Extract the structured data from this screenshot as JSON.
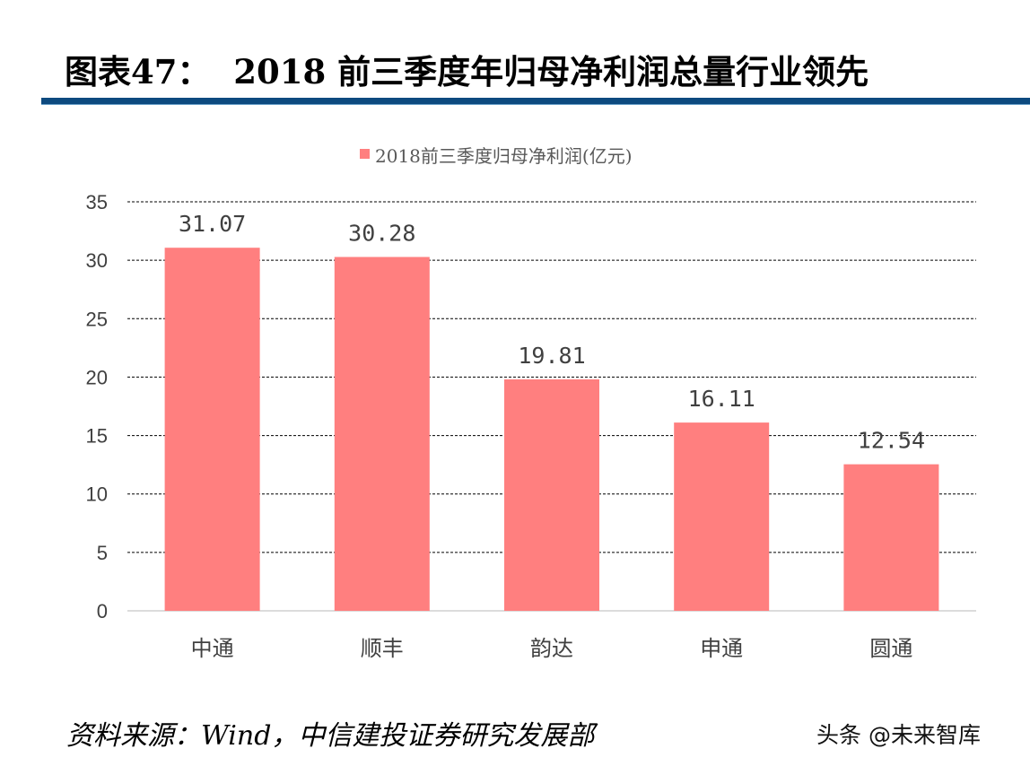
{
  "title": "图表47：  2018 前三季度年归母净利润总量行业领先",
  "source": "资料来源：Wind，中信建投证券研究发展部",
  "watermark": "头条 @未来智库",
  "chart_data": {
    "type": "bar",
    "title": "",
    "categories": [
      "中通",
      "顺丰",
      "韵达",
      "申通",
      "圆通"
    ],
    "series": [
      {
        "name": "2018前三季度归母净利润(亿元)",
        "values": [
          31.07,
          30.28,
          19.81,
          16.11,
          12.54
        ],
        "color": "#ff7f7f"
      }
    ],
    "data_labels": [
      "31.07",
      "30.28",
      "19.81",
      "16.11",
      "12.54"
    ],
    "yticks": [
      "0",
      "5",
      "10",
      "15",
      "20",
      "25",
      "30",
      "35"
    ],
    "ylim": [
      0,
      35
    ],
    "grid": true,
    "grid_style": "dashed",
    "legend": "top-center",
    "xlabel": "",
    "ylabel": ""
  }
}
